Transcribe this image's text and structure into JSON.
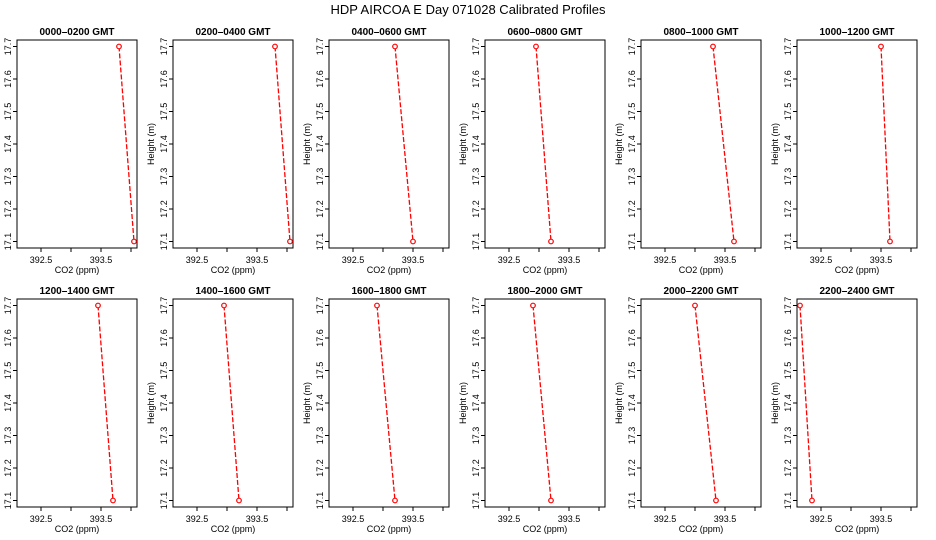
{
  "figure_title": "HDP  AIRCOA E  Day 071028  Calibrated Profiles",
  "chart_data": {
    "type": "line",
    "xlabel": "CO2 (ppm)",
    "ylabel": "Height (m)",
    "xlim": [
      392.1,
      394.1
    ],
    "ylim": [
      17.08,
      17.72
    ],
    "xticks": [
      "392.5",
      "393.5"
    ],
    "xtick_values": [
      392.5,
      393.5
    ],
    "yticks": [
      "17.1",
      "17.2",
      "17.3",
      "17.4",
      "17.5",
      "17.6",
      "17.7"
    ],
    "ytick_values": [
      17.1,
      17.2,
      17.3,
      17.4,
      17.5,
      17.6,
      17.7
    ],
    "line_color": "#ff0000",
    "marker_color": "#ff0000",
    "panels": [
      {
        "title": "0000–0200 GMT",
        "points": [
          {
            "x": 393.8,
            "y": 17.7
          },
          {
            "x": 394.05,
            "y": 17.1
          }
        ]
      },
      {
        "title": "0200–0400 GMT",
        "points": [
          {
            "x": 393.8,
            "y": 17.7
          },
          {
            "x": 394.05,
            "y": 17.1
          }
        ]
      },
      {
        "title": "0400–0600 GMT",
        "points": [
          {
            "x": 393.2,
            "y": 17.7
          },
          {
            "x": 393.5,
            "y": 17.1
          }
        ]
      },
      {
        "title": "0600–0800 GMT",
        "points": [
          {
            "x": 392.95,
            "y": 17.7
          },
          {
            "x": 393.2,
            "y": 17.1
          }
        ]
      },
      {
        "title": "0800–1000 GMT",
        "points": [
          {
            "x": 393.3,
            "y": 17.7
          },
          {
            "x": 393.65,
            "y": 17.1
          }
        ]
      },
      {
        "title": "1000–1200 GMT",
        "points": [
          {
            "x": 393.5,
            "y": 17.7
          },
          {
            "x": 393.65,
            "y": 17.1
          }
        ]
      },
      {
        "title": "1200–1400 GMT",
        "points": [
          {
            "x": 393.45,
            "y": 17.7
          },
          {
            "x": 393.7,
            "y": 17.1
          }
        ]
      },
      {
        "title": "1400–1600 GMT",
        "points": [
          {
            "x": 392.95,
            "y": 17.7
          },
          {
            "x": 393.2,
            "y": 17.1
          }
        ]
      },
      {
        "title": "1600–1800 GMT",
        "points": [
          {
            "x": 392.9,
            "y": 17.7
          },
          {
            "x": 393.2,
            "y": 17.1
          }
        ]
      },
      {
        "title": "1800–2000 GMT",
        "points": [
          {
            "x": 392.9,
            "y": 17.7
          },
          {
            "x": 393.2,
            "y": 17.1
          }
        ]
      },
      {
        "title": "2000–2200 GMT",
        "points": [
          {
            "x": 393.0,
            "y": 17.7
          },
          {
            "x": 393.35,
            "y": 17.1
          }
        ]
      },
      {
        "title": "2200–2400 GMT",
        "points": [
          {
            "x": 392.15,
            "y": 17.7
          },
          {
            "x": 392.35,
            "y": 17.1
          }
        ]
      }
    ]
  }
}
